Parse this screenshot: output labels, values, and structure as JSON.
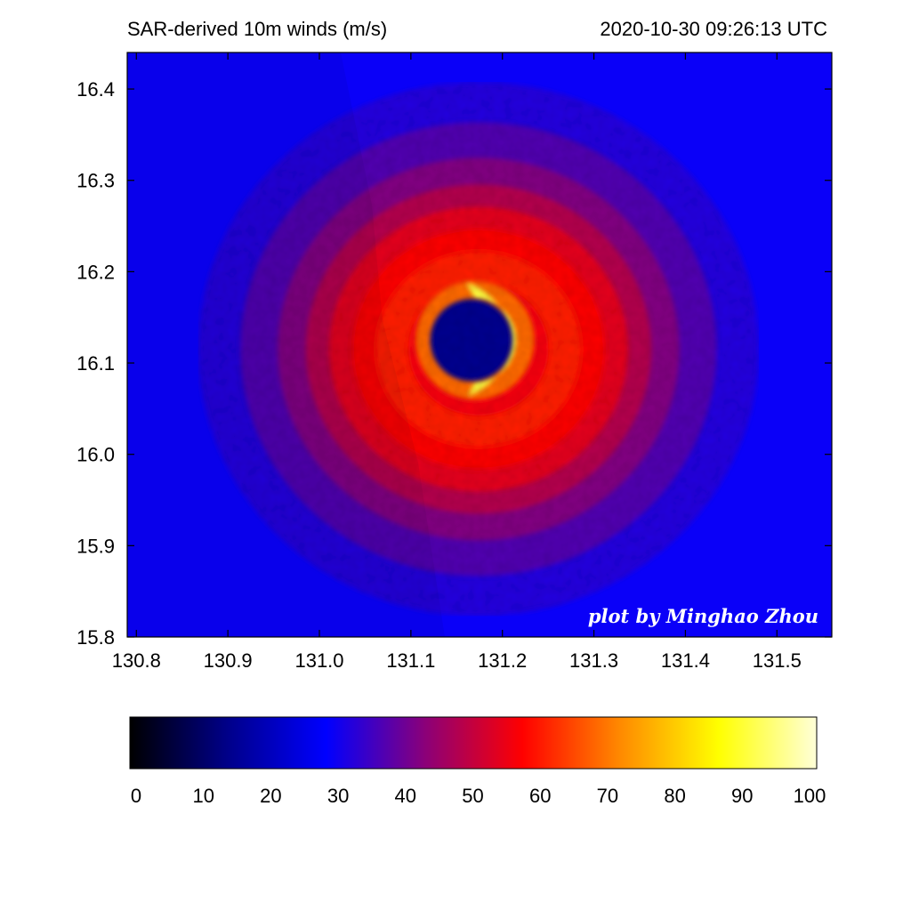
{
  "header": {
    "title": "SAR-derived 10m winds (m/s)",
    "timestamp": "2020-10-30 09:26:13 UTC"
  },
  "credit": "plot by Minghao Zhou",
  "colormap_stops": [
    "#000000",
    "#00008a",
    "#0000ff",
    "#8a007a",
    "#ff0000",
    "#ff8a00",
    "#ffff00",
    "#ffffd8"
  ],
  "chart_data": {
    "type": "heatmap",
    "title": "SAR-derived 10m winds (m/s)",
    "xlim": [
      130.79,
      131.56
    ],
    "ylim": [
      15.8,
      16.44
    ],
    "x_ticks": [
      "130.8",
      "130.9",
      "131.0",
      "131.1",
      "131.2",
      "131.3",
      "131.4",
      "131.5"
    ],
    "y_ticks": [
      "15.8",
      "15.9",
      "16.0",
      "16.1",
      "16.2",
      "16.3",
      "16.4"
    ],
    "eye_center": {
      "lon": 131.17,
      "lat": 16.125
    },
    "eye_radius_deg": 0.045,
    "max_wind_radius_deg": 0.065,
    "ambient_wind": 27,
    "peak_wind": 90,
    "colorbar": {
      "range": [
        0,
        100
      ],
      "ticks": [
        "0",
        "10",
        "20",
        "30",
        "40",
        "50",
        "60",
        "70",
        "80",
        "90",
        "100"
      ]
    }
  }
}
